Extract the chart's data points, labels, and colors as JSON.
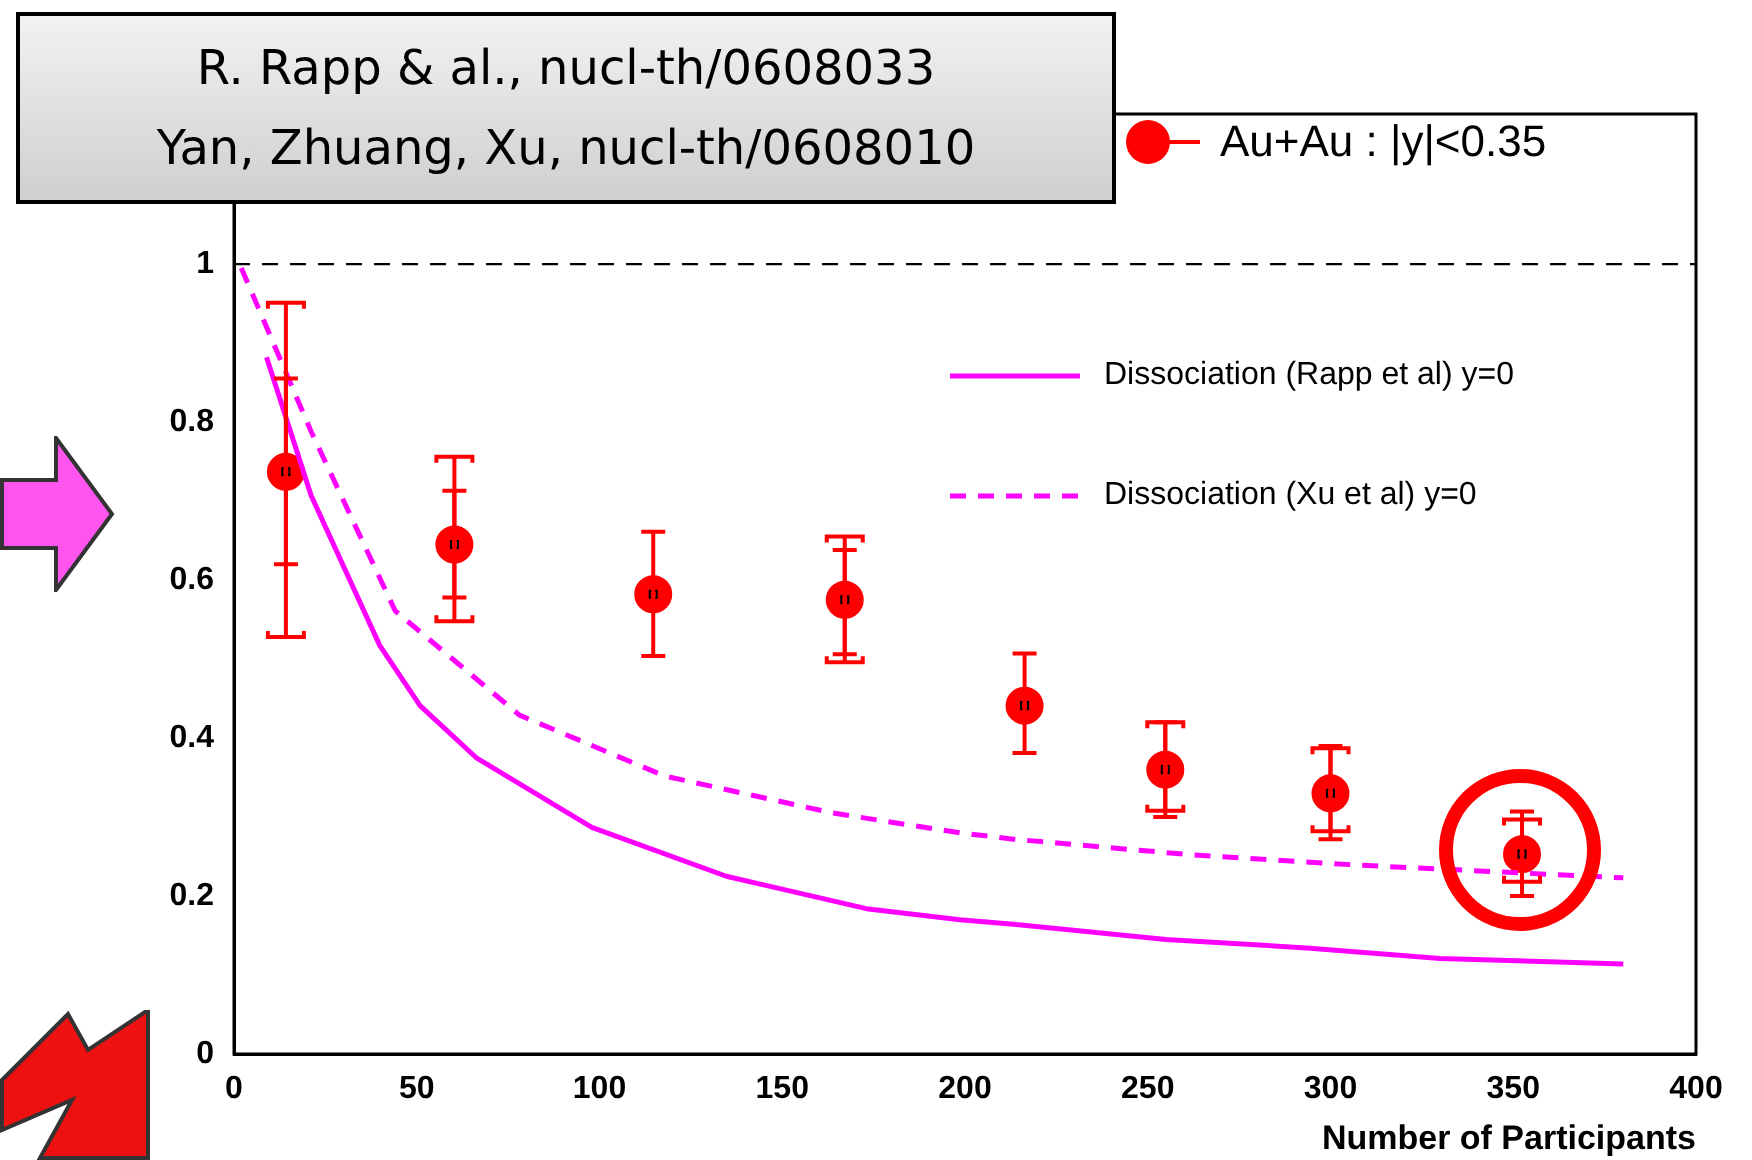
{
  "chart_data": {
    "type": "scatter",
    "xlabel": "Number of Participants",
    "annotations": [
      "R. Rapp & al., nucl-th/0608033",
      "Yan, Zhuang, Xu, nucl-th/0608010"
    ],
    "xlim": [
      0,
      400
    ],
    "xticks": [
      0,
      50,
      100,
      150,
      200,
      250,
      300,
      350,
      400
    ],
    "ylim": [
      0,
      1.19
    ],
    "yticks": [
      0,
      0.2,
      0.4,
      0.6,
      0.8,
      1
    ],
    "legend": "top right",
    "grid": false,
    "ref_lines": [
      {
        "axis": "y",
        "value": 1,
        "color": "#000000",
        "line_style": "dashed"
      }
    ],
    "series": [
      {
        "name": "Au+Au : |y|<0.35",
        "marker": "circle",
        "color": "#ff0000",
        "x": [
          14.2,
          60.3,
          114.7,
          167.1,
          216.3,
          254.8,
          300,
          352.4
        ],
        "values": [
          0.737,
          0.645,
          0.582,
          0.575,
          0.441,
          0.36,
          0.33,
          0.253
        ],
        "errors": [
          [
            0.62,
            0.855
          ],
          [
            0.578,
            0.713
          ],
          [
            0.504,
            0.661
          ],
          [
            0.506,
            0.638
          ],
          [
            0.381,
            0.507
          ],
          [
            0.3,
            0.42
          ],
          [
            0.272,
            0.39
          ],
          [
            0.2,
            0.307
          ]
        ]
      },
      {
        "marker": "square",
        "color": "#ff0000",
        "x": [
          14.2,
          60.3,
          114.7,
          167.1,
          216.3,
          254.8,
          300,
          352.4
        ],
        "values": [
          0.737,
          0.645,
          0.582,
          0.575,
          0.441,
          0.36,
          0.33,
          0.253
        ],
        "errors": [
          [
            0.528,
            0.951
          ],
          [
            0.548,
            0.756
          ],
          null,
          [
            0.496,
            0.655
          ],
          null,
          [
            0.308,
            0.42
          ],
          [
            0.282,
            0.387
          ],
          [
            0.218,
            0.297
          ]
        ]
      },
      {
        "name": "Dissociation (Rapp et al) y=0",
        "type": "line",
        "marker": "none",
        "line_style": "solid",
        "color": "#ff00ff",
        "x": [
          8.9,
          21.1,
          39.9,
          50.9,
          66.3,
          97.9,
          134.7,
          173,
          198.6,
          214,
          255,
          294.4,
          330,
          380.1
        ],
        "values": [
          0.882,
          0.707,
          0.517,
          0.441,
          0.375,
          0.287,
          0.225,
          0.184,
          0.17,
          0.164,
          0.145,
          0.134,
          0.121,
          0.114
        ]
      },
      {
        "name": "Dissociation (Xu et al) y=0",
        "type": "line",
        "marker": "none",
        "line_style": "dashed",
        "color": "#ff00ff",
        "x": [
          2,
          21.1,
          44.1,
          78.1,
          117.8,
          163.9,
          198.6,
          213.2,
          262.3,
          308,
          380.1
        ],
        "values": [
          0.995,
          0.788,
          0.561,
          0.429,
          0.352,
          0.305,
          0.28,
          0.272,
          0.252,
          0.239,
          0.223
        ]
      }
    ]
  }
}
